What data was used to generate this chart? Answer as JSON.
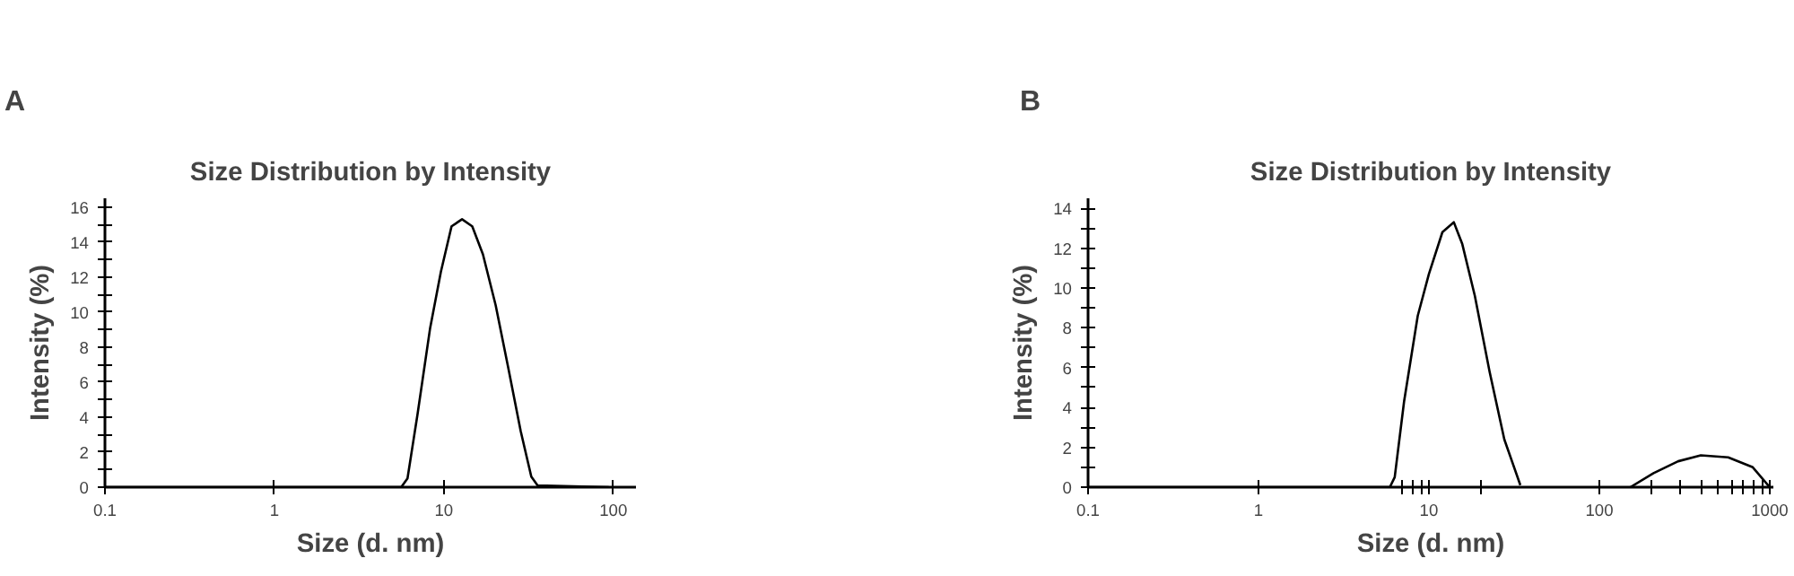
{
  "chart_data": [
    {
      "type": "line",
      "title": "Size Distribution by Intensity",
      "xlabel": "Size (d. nm)",
      "ylabel": "Intensity (%)",
      "annotations": [
        "A"
      ],
      "log": "x",
      "marker": "none",
      "line_style": "solid",
      "grid": false,
      "series": [
        {
          "color": "#000000",
          "x": [
            0.1,
            5.6,
            6.1,
            7.0,
            8.3,
            9.6,
            11.1,
            12.8,
            14.7,
            17.0,
            20.2,
            24.0,
            28.4,
            32.8,
            35.7,
            94
          ],
          "values": [
            0,
            0,
            0.5,
            4.2,
            9.1,
            12.3,
            14.9,
            15.3,
            14.9,
            13.3,
            10.4,
            6.8,
            3.2,
            0.6,
            0.1,
            0
          ]
        }
      ],
      "xlim": [
        0.1,
        136
      ],
      "xticks": [
        0.1,
        1,
        10,
        100
      ],
      "ylim": [
        0,
        16.5
      ],
      "yticks": [
        0,
        {
          "value": 1,
          "label": null
        },
        2,
        {
          "value": 3,
          "label": null
        },
        4,
        {
          "value": 5,
          "label": null
        },
        6,
        {
          "value": 7,
          "label": null
        },
        8,
        {
          "value": 9,
          "label": null
        },
        10,
        {
          "value": 11,
          "label": null
        },
        12,
        {
          "value": 13,
          "label": null
        },
        14,
        {
          "value": 15,
          "label": null
        },
        16
      ]
    },
    {
      "type": "line",
      "title": "Size Distribution by Intensity",
      "xlabel": "Size (d. nm)",
      "ylabel": "Intensity (%)",
      "annotations": [
        "B"
      ],
      "log": "x",
      "marker": "none",
      "line_style": "solid",
      "grid": false,
      "series": [
        {
          "color": "#000000",
          "x": [
            0.1,
            5.9,
            6.3,
            7.15,
            8.6,
            10,
            12.0,
            14.0,
            15.7,
            18.6,
            22.7,
            27.7,
            34.4
          ],
          "values": [
            0,
            0,
            0.5,
            4.3,
            8.6,
            10.7,
            12.8,
            13.3,
            12.2,
            9.6,
            5.8,
            2.4,
            0.1
          ]
        },
        {
          "color": "#000000",
          "x": [
            152,
            208,
            290,
            394,
            570,
            795,
            1000
          ],
          "values": [
            0,
            0.7,
            1.3,
            1.6,
            1.5,
            1.0,
            0
          ]
        }
      ],
      "xlim": [
        0.1,
        1050
      ],
      "xticks": [
        0.1,
        1,
        {
          "value": 7,
          "label": null
        },
        {
          "value": 8,
          "label": null
        },
        {
          "value": 9,
          "label": null
        },
        10,
        {
          "value": 20,
          "label": null
        },
        100,
        {
          "value": 200,
          "label": null
        },
        {
          "value": 300,
          "label": null
        },
        {
          "value": 400,
          "label": null
        },
        {
          "value": 500,
          "label": null
        },
        {
          "value": 600,
          "label": null
        },
        {
          "value": 700,
          "label": null
        },
        {
          "value": 800,
          "label": null
        },
        {
          "value": 900,
          "label": null
        },
        1000
      ],
      "ylim": [
        0,
        14.5
      ],
      "yticks": [
        0,
        {
          "value": 1,
          "label": null
        },
        2,
        {
          "value": 3,
          "label": null
        },
        4,
        {
          "value": 5,
          "label": null
        },
        6,
        {
          "value": 7,
          "label": null
        },
        8,
        {
          "value": 9,
          "label": null
        },
        10,
        {
          "value": 11,
          "label": null
        },
        12,
        {
          "value": 13,
          "label": null
        },
        14
      ]
    }
  ]
}
